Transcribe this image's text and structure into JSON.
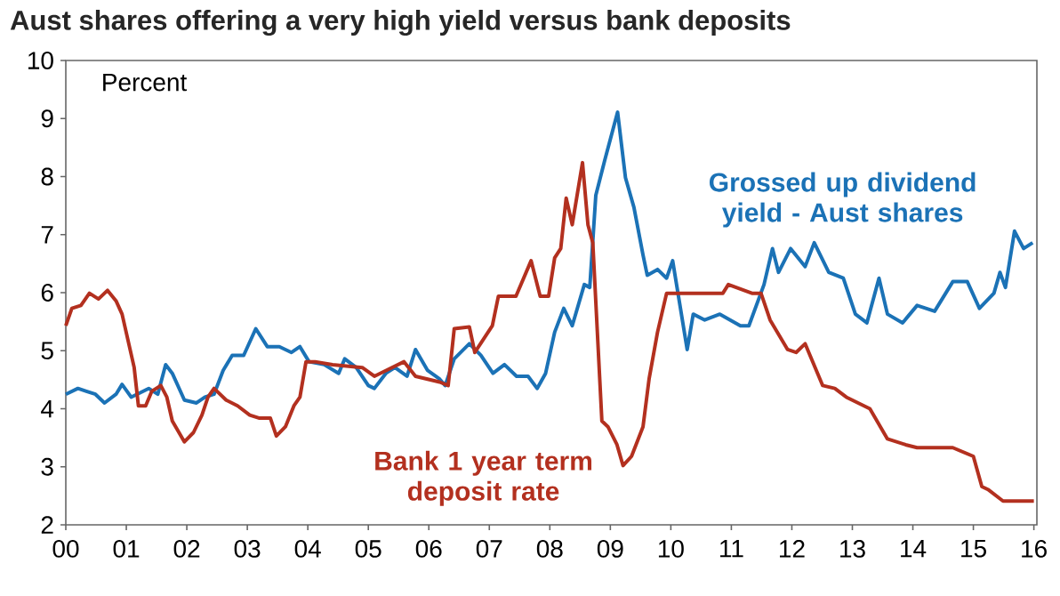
{
  "chart_data": {
    "type": "line",
    "title": "Aust shares offering a very high yield versus bank deposits",
    "annotations": [
      "Percent"
    ],
    "xlim": [
      2000,
      2016.05
    ],
    "xticks": [
      {
        "value": 2000,
        "label": "00"
      },
      {
        "value": 2001,
        "label": "01"
      },
      {
        "value": 2002,
        "label": "02"
      },
      {
        "value": 2003,
        "label": "03"
      },
      {
        "value": 2004,
        "label": "04"
      },
      {
        "value": 2005,
        "label": "05"
      },
      {
        "value": 2006,
        "label": "06"
      },
      {
        "value": 2007,
        "label": "07"
      },
      {
        "value": 2008,
        "label": "08"
      },
      {
        "value": 2009,
        "label": "09"
      },
      {
        "value": 2010,
        "label": "10"
      },
      {
        "value": 2011,
        "label": "11"
      },
      {
        "value": 2012,
        "label": "12"
      },
      {
        "value": 2013,
        "label": "13"
      },
      {
        "value": 2014,
        "label": "14"
      },
      {
        "value": 2015,
        "label": "15"
      },
      {
        "value": 2016,
        "label": "16"
      }
    ],
    "ylim": [
      2,
      10
    ],
    "yticks": [
      2,
      3,
      4,
      5,
      6,
      7,
      8,
      9,
      10
    ],
    "marker": "none",
    "line_style": "solid",
    "series": [
      {
        "name": "Grossed up dividend yield - Aust shares",
        "color": "#1b72b6",
        "x": [
          2000.0,
          2000.2,
          2000.34,
          2000.49,
          2000.64,
          2000.83,
          2000.93,
          2001.08,
          2001.37,
          2001.52,
          2001.65,
          2001.76,
          2001.96,
          2002.16,
          2002.3,
          2002.45,
          2002.6,
          2002.75,
          2002.94,
          2003.14,
          2003.33,
          2003.53,
          2003.73,
          2003.87,
          2004.02,
          2004.27,
          2004.51,
          2004.61,
          2004.8,
          2005.0,
          2005.1,
          2005.29,
          2005.44,
          2005.64,
          2005.78,
          2005.98,
          2006.18,
          2006.27,
          2006.42,
          2006.67,
          2006.86,
          2007.06,
          2007.25,
          2007.45,
          2007.64,
          2007.79,
          2007.93,
          2008.08,
          2008.23,
          2008.37,
          2008.57,
          2008.66,
          2008.76,
          2008.91,
          2009.12,
          2009.25,
          2009.39,
          2009.54,
          2009.61,
          2009.78,
          2009.93,
          2010.03,
          2010.27,
          2010.37,
          2010.56,
          2010.81,
          2011.15,
          2011.29,
          2011.54,
          2011.68,
          2011.78,
          2011.98,
          2012.22,
          2012.37,
          2012.61,
          2012.85,
          2013.05,
          2013.24,
          2013.44,
          2013.58,
          2013.83,
          2014.07,
          2014.36,
          2014.66,
          2014.9,
          2015.1,
          2015.34,
          2015.44,
          2015.53,
          2015.68,
          2015.83,
          2015.98
        ],
        "values": [
          4.25,
          4.35,
          4.3,
          4.25,
          4.1,
          4.25,
          4.42,
          4.2,
          4.35,
          4.25,
          4.76,
          4.61,
          4.15,
          4.1,
          4.2,
          4.25,
          4.66,
          4.92,
          4.92,
          5.38,
          5.07,
          5.07,
          4.97,
          5.07,
          4.81,
          4.76,
          4.61,
          4.86,
          4.71,
          4.4,
          4.35,
          4.61,
          4.71,
          4.56,
          5.02,
          4.66,
          4.51,
          4.4,
          4.86,
          5.12,
          4.92,
          4.61,
          4.76,
          4.56,
          4.56,
          4.35,
          4.61,
          5.32,
          5.73,
          5.43,
          6.14,
          6.09,
          7.68,
          8.29,
          9.11,
          7.98,
          7.47,
          6.65,
          6.3,
          6.4,
          6.25,
          6.55,
          5.02,
          5.63,
          5.53,
          5.63,
          5.43,
          5.43,
          6.14,
          6.76,
          6.35,
          6.76,
          6.45,
          6.86,
          6.35,
          6.25,
          5.63,
          5.48,
          6.25,
          5.63,
          5.48,
          5.78,
          5.68,
          6.19,
          6.19,
          5.73,
          5.99,
          6.35,
          6.09,
          7.06,
          6.76,
          6.86
        ]
      },
      {
        "name": "Bank 1 year term deposit rate",
        "color": "#b3301f",
        "x": [
          2000.0,
          2000.1,
          2000.25,
          2000.39,
          2000.54,
          2000.69,
          2000.83,
          2000.93,
          2001.13,
          2001.2,
          2001.32,
          2001.42,
          2001.57,
          2001.67,
          2001.76,
          2001.96,
          2002.11,
          2002.25,
          2002.35,
          2002.45,
          2002.65,
          2002.84,
          2003.04,
          2003.19,
          2003.38,
          2003.48,
          2003.63,
          2003.77,
          2003.87,
          2003.97,
          2004.12,
          2004.41,
          2004.9,
          2005.1,
          2005.39,
          2005.59,
          2005.78,
          2006.18,
          2006.32,
          2006.42,
          2006.67,
          2006.76,
          2007.05,
          2007.15,
          2007.44,
          2007.69,
          2007.84,
          2007.98,
          2008.08,
          2008.18,
          2008.27,
          2008.37,
          2008.54,
          2008.63,
          2008.71,
          2008.86,
          2008.96,
          2009.11,
          2009.21,
          2009.35,
          2009.54,
          2009.64,
          2009.78,
          2009.93,
          2010.86,
          2010.95,
          2011.34,
          2011.49,
          2011.64,
          2011.93,
          2012.07,
          2012.22,
          2012.51,
          2012.71,
          2012.9,
          2013.29,
          2013.58,
          2013.88,
          2014.07,
          2014.66,
          2015.0,
          2015.14,
          2015.24,
          2015.49,
          2016.0
        ],
        "values": [
          5.43,
          5.73,
          5.78,
          5.99,
          5.89,
          6.04,
          5.86,
          5.63,
          4.71,
          4.05,
          4.05,
          4.3,
          4.4,
          4.2,
          3.79,
          3.43,
          3.59,
          3.89,
          4.2,
          4.35,
          4.15,
          4.05,
          3.89,
          3.84,
          3.84,
          3.53,
          3.69,
          4.05,
          4.2,
          4.81,
          4.81,
          4.76,
          4.71,
          4.56,
          4.71,
          4.81,
          4.56,
          4.46,
          4.4,
          5.38,
          5.41,
          4.97,
          5.43,
          5.94,
          5.94,
          6.55,
          5.94,
          5.94,
          6.6,
          6.76,
          7.63,
          7.17,
          8.24,
          7.17,
          6.86,
          3.79,
          3.69,
          3.38,
          3.02,
          3.18,
          3.69,
          4.51,
          5.32,
          5.99,
          5.99,
          6.14,
          5.99,
          5.99,
          5.53,
          5.02,
          4.97,
          5.12,
          4.4,
          4.35,
          4.2,
          4.0,
          3.48,
          3.38,
          3.33,
          3.33,
          3.18,
          2.66,
          2.61,
          2.41,
          2.41
        ]
      }
    ]
  }
}
